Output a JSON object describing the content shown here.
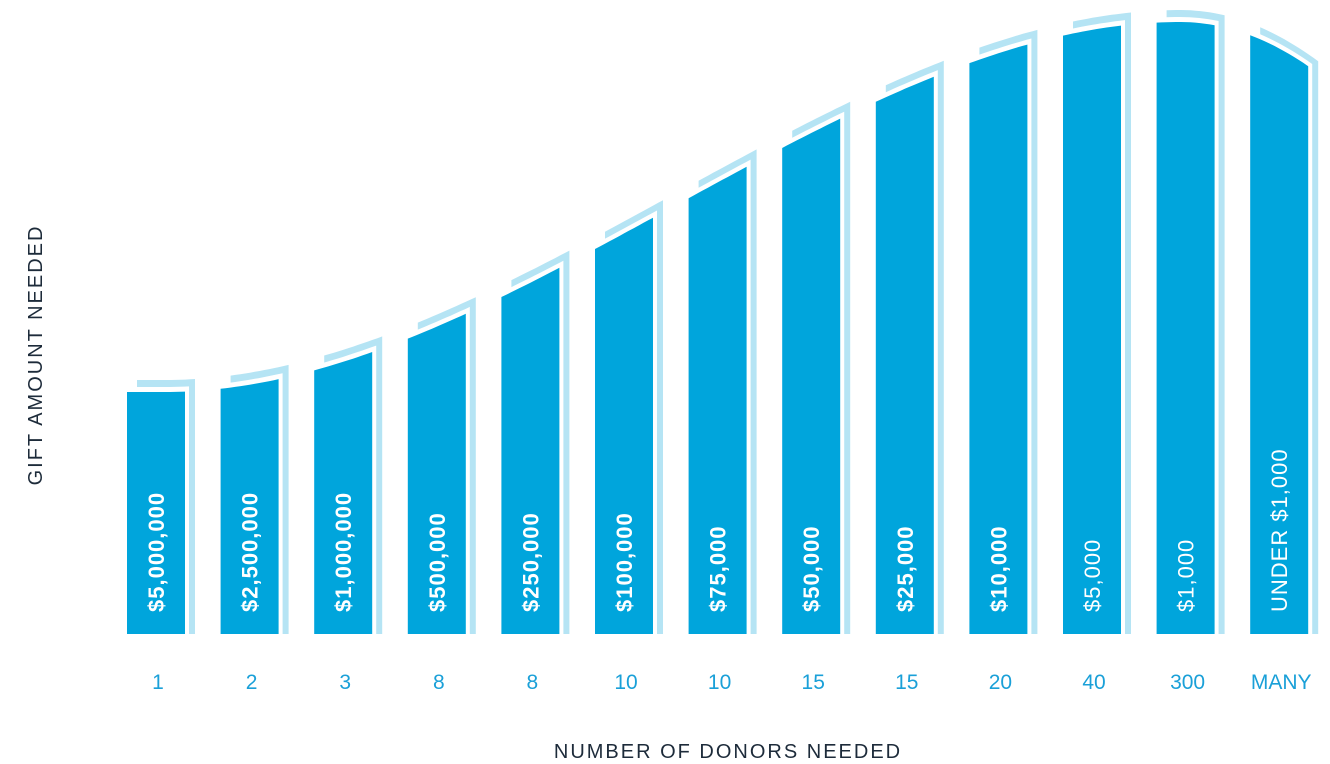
{
  "chart_data": {
    "type": "bar",
    "title": "",
    "xlabel": "NUMBER OF DONORS NEEDED",
    "ylabel": "GIFT AMOUNT NEEDED",
    "categories": [
      "1",
      "2",
      "3",
      "8",
      "8",
      "10",
      "10",
      "15",
      "15",
      "20",
      "40",
      "300",
      "MANY"
    ],
    "series": [
      {
        "values": [
          "$5,000,000",
          "$2,500,000",
          "$1,000,000",
          "$500,000",
          "$250,000",
          "$100,000",
          "$75,000",
          "$50,000",
          "$25,000",
          "$10,000",
          "$5,000",
          "$1,000",
          "UNDER $1,000"
        ]
      }
    ],
    "grid": false,
    "legend": "none",
    "colors": {
      "bar": "#00a5dc",
      "bar_shadow": "#b5e4f4",
      "label": "#ffffff",
      "category": "#1aa0d8",
      "axis_title": "#1d2b3a"
    }
  }
}
